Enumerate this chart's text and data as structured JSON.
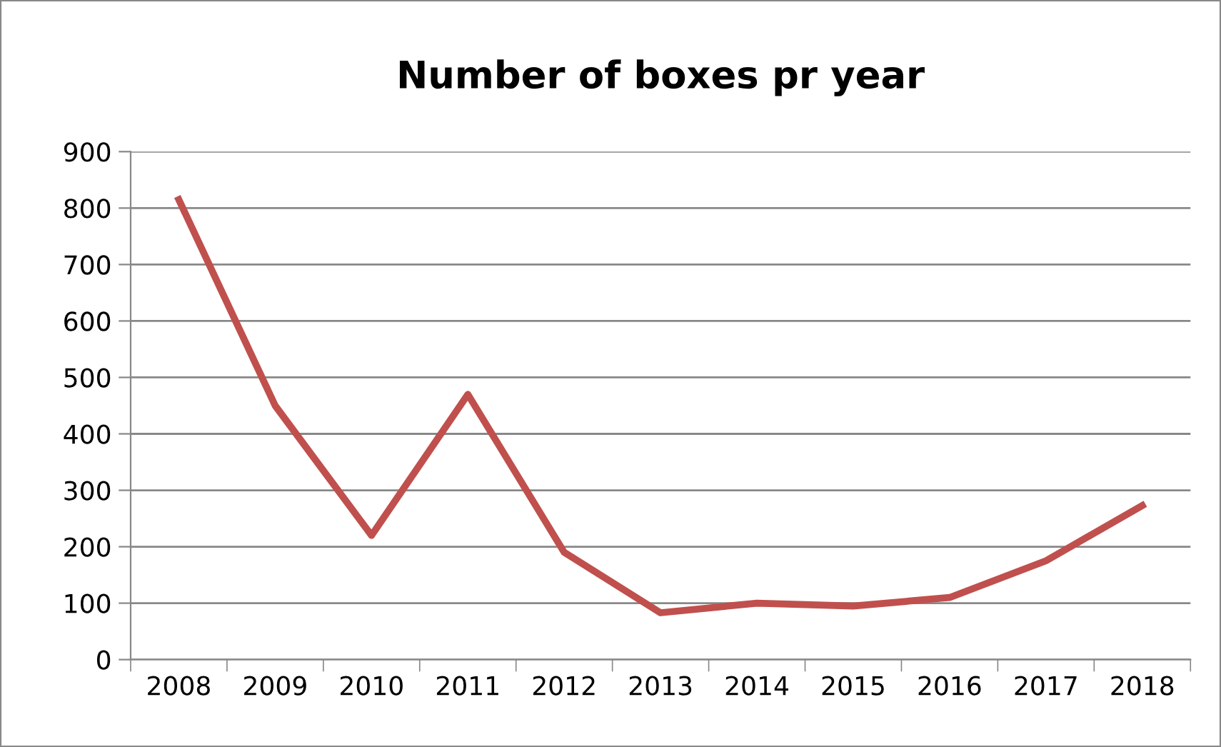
{
  "chart_data": {
    "type": "line",
    "title": "Number of boxes pr year",
    "categories": [
      "2008",
      "2009",
      "2010",
      "2011",
      "2012",
      "2013",
      "2014",
      "2015",
      "2016",
      "2017",
      "2018"
    ],
    "series": [
      {
        "color": "#c0504d",
        "values": [
          815,
          450,
          220,
          470,
          190,
          83,
          100,
          95,
          110,
          175,
          273
        ]
      }
    ],
    "ylim": [
      0,
      900
    ],
    "yticks": [
      0,
      100,
      200,
      300,
      400,
      500,
      600,
      700,
      800,
      900
    ],
    "grid": "y",
    "legend": false,
    "marker": "none",
    "line_style": "solid"
  }
}
